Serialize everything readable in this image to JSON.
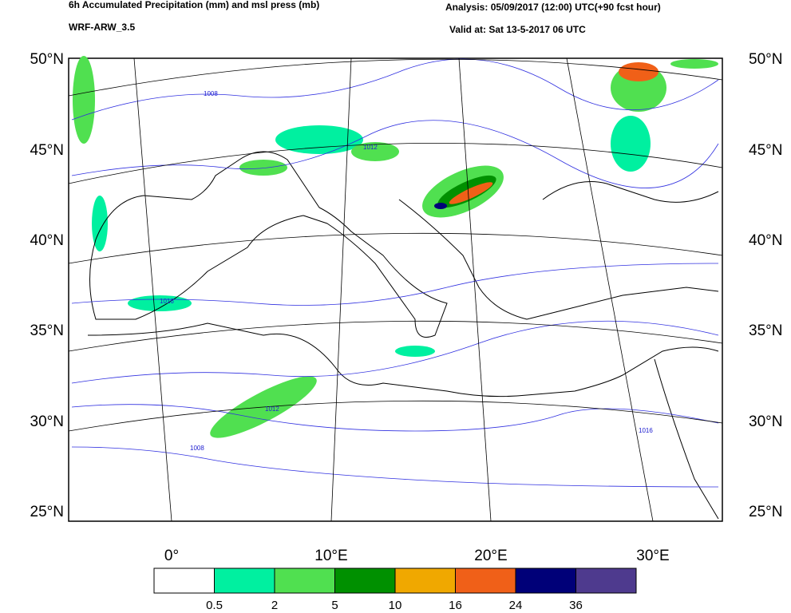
{
  "header": {
    "title": "6h Accumulated Precipitation (mm) and msl press (mb)",
    "model": "WRF-ARW_3.5",
    "analysis": "Analysis: 05/09/2017 (12:00) UTC(+90 fcst hour)",
    "valid": "Valid at: Sat 13-5-2017 06 UTC"
  },
  "map": {
    "lat_labels": [
      "50°N",
      "45°N",
      "40°N",
      "35°N",
      "30°N",
      "25°N"
    ],
    "lon_labels": [
      "0°",
      "10°E",
      "20°E",
      "30°E"
    ],
    "isobar_labels": [
      "1008",
      "1012",
      "1016"
    ]
  },
  "colorbar": {
    "colors": [
      "#ffffff",
      "#00f0a0",
      "#50e050",
      "#009000",
      "#f0a800",
      "#f06018",
      "#000078",
      "#4e3a8e"
    ],
    "labels": [
      0.5,
      2,
      5,
      10,
      16,
      24,
      36
    ]
  }
}
